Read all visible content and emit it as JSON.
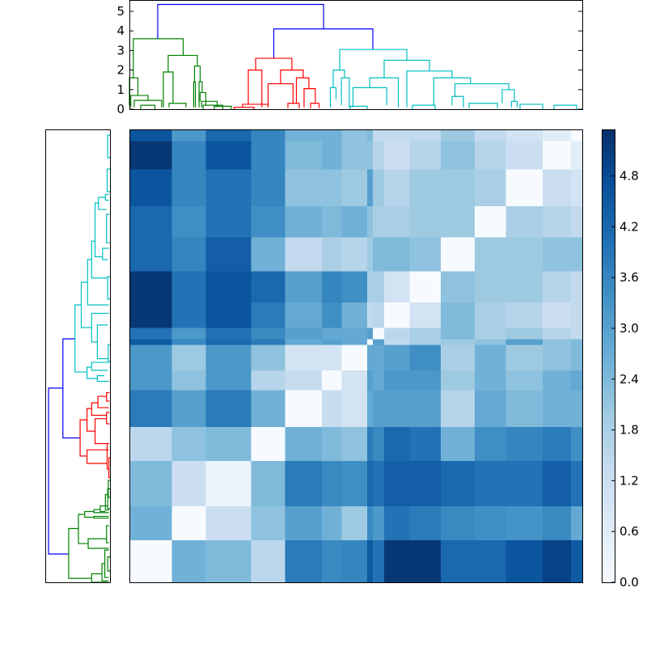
{
  "chart_data": {
    "type": "heatmap",
    "title": "",
    "colormap": "Blues",
    "color_range": [
      0,
      5.35
    ],
    "colorbar_ticks": [
      "0.0",
      "0.6",
      "1.2",
      "1.8",
      "2.4",
      "3.0",
      "3.6",
      "4.2",
      "4.8"
    ],
    "top_dendrogram_ticks": [
      "0",
      "1",
      "2",
      "3",
      "4",
      "5"
    ],
    "top_dendrogram_ylim": [
      0,
      5.6
    ],
    "cluster_colors": {
      "green": "#008000",
      "red": "#ff0000",
      "cyan": "#00bfbf",
      "blue": "#0000ff"
    },
    "block_leaf_counts": [
      15,
      12,
      16,
      12,
      13,
      7,
      9,
      2,
      4,
      9,
      11,
      12,
      11,
      13,
      10,
      4
    ],
    "block_values": [
      [
        0,
        2.6,
        2.4,
        1.5,
        3.8,
        3.5,
        3.6,
        4.5,
        4.0,
        5.2,
        5.2,
        4.2,
        4.2,
        4.6,
        5.0,
        4.5
      ],
      [
        2.6,
        0,
        1.2,
        2.2,
        3.0,
        2.6,
        2.0,
        3.5,
        3.2,
        4.0,
        3.8,
        3.5,
        3.4,
        3.3,
        3.5,
        2.8
      ],
      [
        2.4,
        1.2,
        0.3,
        2.4,
        3.8,
        3.5,
        3.4,
        4.2,
        4.0,
        4.4,
        4.4,
        4.2,
        4.0,
        4.0,
        4.4,
        4.0
      ],
      [
        1.5,
        2.2,
        2.4,
        0,
        2.6,
        2.4,
        2.2,
        3.8,
        3.5,
        4.2,
        4.0,
        2.6,
        3.4,
        3.6,
        3.8,
        3.4
      ],
      [
        3.8,
        3.0,
        3.8,
        2.6,
        0,
        1.3,
        1.0,
        2.8,
        3.0,
        3.0,
        3.0,
        1.6,
        2.8,
        2.4,
        2.6,
        2.6
      ],
      [
        3.2,
        2.2,
        3.2,
        1.6,
        1.3,
        0,
        1.0,
        3.0,
        2.8,
        3.2,
        3.2,
        2.0,
        2.6,
        2.2,
        2.6,
        2.8
      ],
      [
        3.2,
        2.0,
        3.2,
        2.2,
        1.0,
        1.0,
        0,
        2.8,
        2.8,
        3.0,
        3.4,
        1.8,
        2.6,
        2.0,
        2.2,
        2.4
      ],
      [
        4.5,
        3.5,
        4.2,
        3.8,
        2.8,
        3.0,
        2.8,
        0,
        3.0,
        1.4,
        1.8,
        2.0,
        2.2,
        3.0,
        2.2,
        2.4
      ],
      [
        4.0,
        3.2,
        4.0,
        3.5,
        3.0,
        2.8,
        2.8,
        3.0,
        0,
        1.5,
        1.8,
        2.4,
        1.8,
        2.0,
        1.6,
        1.4
      ],
      [
        5.2,
        4.0,
        4.6,
        3.8,
        2.8,
        3.4,
        2.6,
        1.4,
        1.5,
        0,
        1.0,
        2.4,
        1.8,
        1.6,
        1.2,
        1.4
      ],
      [
        5.2,
        4.0,
        4.6,
        4.2,
        3.0,
        3.6,
        3.4,
        1.8,
        1.8,
        1.0,
        0,
        2.2,
        2.0,
        2.0,
        1.6,
        1.4
      ],
      [
        4.2,
        3.6,
        4.4,
        2.6,
        1.4,
        1.8,
        1.6,
        2.0,
        2.4,
        2.4,
        2.2,
        0,
        2.0,
        2.0,
        2.2,
        2.2
      ],
      [
        4.2,
        3.4,
        4.0,
        3.4,
        2.6,
        2.4,
        2.6,
        2.2,
        1.8,
        1.8,
        2.0,
        2.0,
        0,
        1.8,
        1.6,
        1.4
      ],
      [
        4.6,
        3.6,
        4.0,
        3.6,
        2.2,
        2.2,
        2.0,
        3.0,
        2.0,
        1.6,
        2.0,
        2.0,
        1.8,
        0,
        1.2,
        1.0
      ],
      [
        5.2,
        3.6,
        4.6,
        3.6,
        2.4,
        2.6,
        2.2,
        2.2,
        1.6,
        1.2,
        1.6,
        2.2,
        1.6,
        1.2,
        0,
        0.6
      ],
      [
        4.6,
        3.2,
        4.2,
        3.6,
        2.6,
        2.6,
        2.2,
        2.4,
        1.4,
        1.4,
        1.4,
        2.0,
        1.4,
        1.0,
        0.6,
        0
      ]
    ],
    "dendrogram_links": [
      {
        "c": "blue",
        "x": [
          10,
          68.6
        ],
        "h": 5.35,
        "legs": [
          3.6,
          4.1
        ]
      },
      {
        "c": "blue",
        "x": [
          51,
          86
        ],
        "h": 4.1,
        "legs": [
          2.6,
          3.05
        ]
      },
      {
        "c": "green",
        "x": [
          1.4,
          19
        ],
        "h": 3.6,
        "legs": [
          1.6,
          2.75
        ]
      },
      {
        "c": "green",
        "x": [
          0,
          3
        ],
        "h": 1.6,
        "legs": [
          0.2,
          0.7
        ]
      },
      {
        "c": "green",
        "x": [
          0.5,
          6.6
        ],
        "h": 0.7,
        "legs": [
          0.1,
          0.45
        ]
      },
      {
        "c": "green",
        "x": [
          1.7,
          11.4
        ],
        "h": 0.45,
        "legs": [
          0.1,
          0.1
        ]
      },
      {
        "c": "green",
        "x": [
          13.7,
          24
        ],
        "h": 2.75,
        "legs": [
          1.9,
          2.2
        ]
      },
      {
        "c": "green",
        "x": [
          12,
          15.4
        ],
        "h": 1.9,
        "legs": [
          0.1,
          0.3
        ]
      },
      {
        "c": "green",
        "x": [
          14,
          20
        ],
        "h": 0.3,
        "legs": [
          0.1,
          0.1
        ]
      },
      {
        "c": "green",
        "x": [
          23,
          25
        ],
        "h": 2.2,
        "legs": [
          1.4,
          1.4
        ]
      },
      {
        "c": "green",
        "x": [
          22.7,
          23.3
        ],
        "h": 1.4,
        "legs": [
          0.1,
          0.1
        ]
      },
      {
        "c": "green",
        "x": [
          24.6,
          25.7
        ],
        "h": 1.4,
        "legs": [
          0.1,
          0.85
        ]
      },
      {
        "c": "green",
        "x": [
          25,
          27
        ],
        "h": 0.85,
        "legs": [
          0.4,
          0.2
        ]
      },
      {
        "c": "green",
        "x": [
          25.5,
          31
        ],
        "h": 0.4,
        "legs": [
          0.1,
          0.1
        ]
      },
      {
        "c": "green",
        "x": [
          4,
          9
        ],
        "h": 0.2,
        "legs": [
          0,
          0
        ]
      },
      {
        "c": "green",
        "x": [
          26,
          33
        ],
        "h": 0.2,
        "legs": [
          0,
          0
        ]
      },
      {
        "c": "green",
        "x": [
          30,
          36
        ],
        "h": 0.15,
        "legs": [
          0,
          0
        ]
      },
      {
        "c": "red",
        "x": [
          44.6,
          57.4
        ],
        "h": 2.6,
        "legs": [
          2.0,
          2.0
        ]
      },
      {
        "c": "red",
        "x": [
          42,
          46.8
        ],
        "h": 2.0,
        "legs": [
          0.25,
          0.1
        ]
      },
      {
        "c": "red",
        "x": [
          40,
          49
        ],
        "h": 0.25,
        "legs": [
          0.1,
          0.1
        ]
      },
      {
        "c": "red",
        "x": [
          53.4,
          61.4
        ],
        "h": 2.0,
        "legs": [
          1.3,
          1.6
        ]
      },
      {
        "c": "red",
        "x": [
          49,
          57.8
        ],
        "h": 1.3,
        "legs": [
          0.1,
          0.3
        ]
      },
      {
        "c": "red",
        "x": [
          59,
          63.4
        ],
        "h": 1.6,
        "legs": [
          0.3,
          1.05
        ]
      },
      {
        "c": "red",
        "x": [
          61.7,
          65.7
        ],
        "h": 1.05,
        "legs": [
          0.1,
          0.3
        ]
      },
      {
        "c": "red",
        "x": [
          37,
          44
        ],
        "h": 0.1,
        "legs": [
          0,
          0
        ]
      },
      {
        "c": "red",
        "x": [
          56,
          60
        ],
        "h": 0.3,
        "legs": [
          0.05,
          0.05
        ]
      },
      {
        "c": "red",
        "x": [
          64,
          67
        ],
        "h": 0.3,
        "legs": [
          0.05,
          0.05
        ]
      },
      {
        "c": "cyan",
        "x": [
          74.3,
          98
        ],
        "h": 3.05,
        "legs": [
          2.0,
          2.5
        ]
      },
      {
        "c": "cyan",
        "x": [
          72,
          76
        ],
        "h": 2.0,
        "legs": [
          1.1,
          1.6
        ]
      },
      {
        "c": "cyan",
        "x": [
          71,
          73
        ],
        "h": 1.1,
        "legs": [
          0.1,
          0.5
        ]
      },
      {
        "c": "cyan",
        "x": [
          74.9,
          77.7
        ],
        "h": 1.6,
        "legs": [
          0.2,
          0.1
        ]
      },
      {
        "c": "cyan",
        "x": [
          90,
          106
        ],
        "h": 2.5,
        "legs": [
          1.6,
          1.95
        ]
      },
      {
        "c": "cyan",
        "x": [
          84.9,
          95
        ],
        "h": 1.6,
        "legs": [
          1.1,
          0.1
        ]
      },
      {
        "c": "cyan",
        "x": [
          79,
          90.9
        ],
        "h": 1.1,
        "legs": [
          0.1,
          0.2
        ]
      },
      {
        "c": "cyan",
        "x": [
          98,
          114
        ],
        "h": 1.95,
        "legs": [
          0.1,
          1.6
        ]
      },
      {
        "c": "cyan",
        "x": [
          107.5,
          120.5
        ],
        "h": 1.6,
        "legs": [
          0.2,
          1.3
        ]
      },
      {
        "c": "cyan",
        "x": [
          115,
          134
        ],
        "h": 1.3,
        "legs": [
          0.65,
          1.0
        ]
      },
      {
        "c": "cyan",
        "x": [
          114,
          118
        ],
        "h": 0.65,
        "legs": [
          0.2,
          0.1
        ]
      },
      {
        "c": "cyan",
        "x": [
          131.7,
          136
        ],
        "h": 1.0,
        "legs": [
          0.3,
          0.4
        ]
      },
      {
        "c": "cyan",
        "x": [
          135,
          137
        ],
        "h": 0.4,
        "legs": [
          0.1,
          0.1
        ]
      },
      {
        "c": "cyan",
        "x": [
          78,
          84
        ],
        "h": 0.15,
        "legs": [
          0,
          0
        ]
      },
      {
        "c": "cyan",
        "x": [
          100,
          108
        ],
        "h": 0.2,
        "legs": [
          0,
          0
        ]
      },
      {
        "c": "cyan",
        "x": [
          120,
          130
        ],
        "h": 0.3,
        "legs": [
          0.05,
          0.05
        ]
      },
      {
        "c": "cyan",
        "x": [
          138,
          146
        ],
        "h": 0.25,
        "legs": [
          0,
          0
        ]
      },
      {
        "c": "cyan",
        "x": [
          150,
          158
        ],
        "h": 0.2,
        "legs": [
          0,
          0
        ]
      }
    ]
  }
}
